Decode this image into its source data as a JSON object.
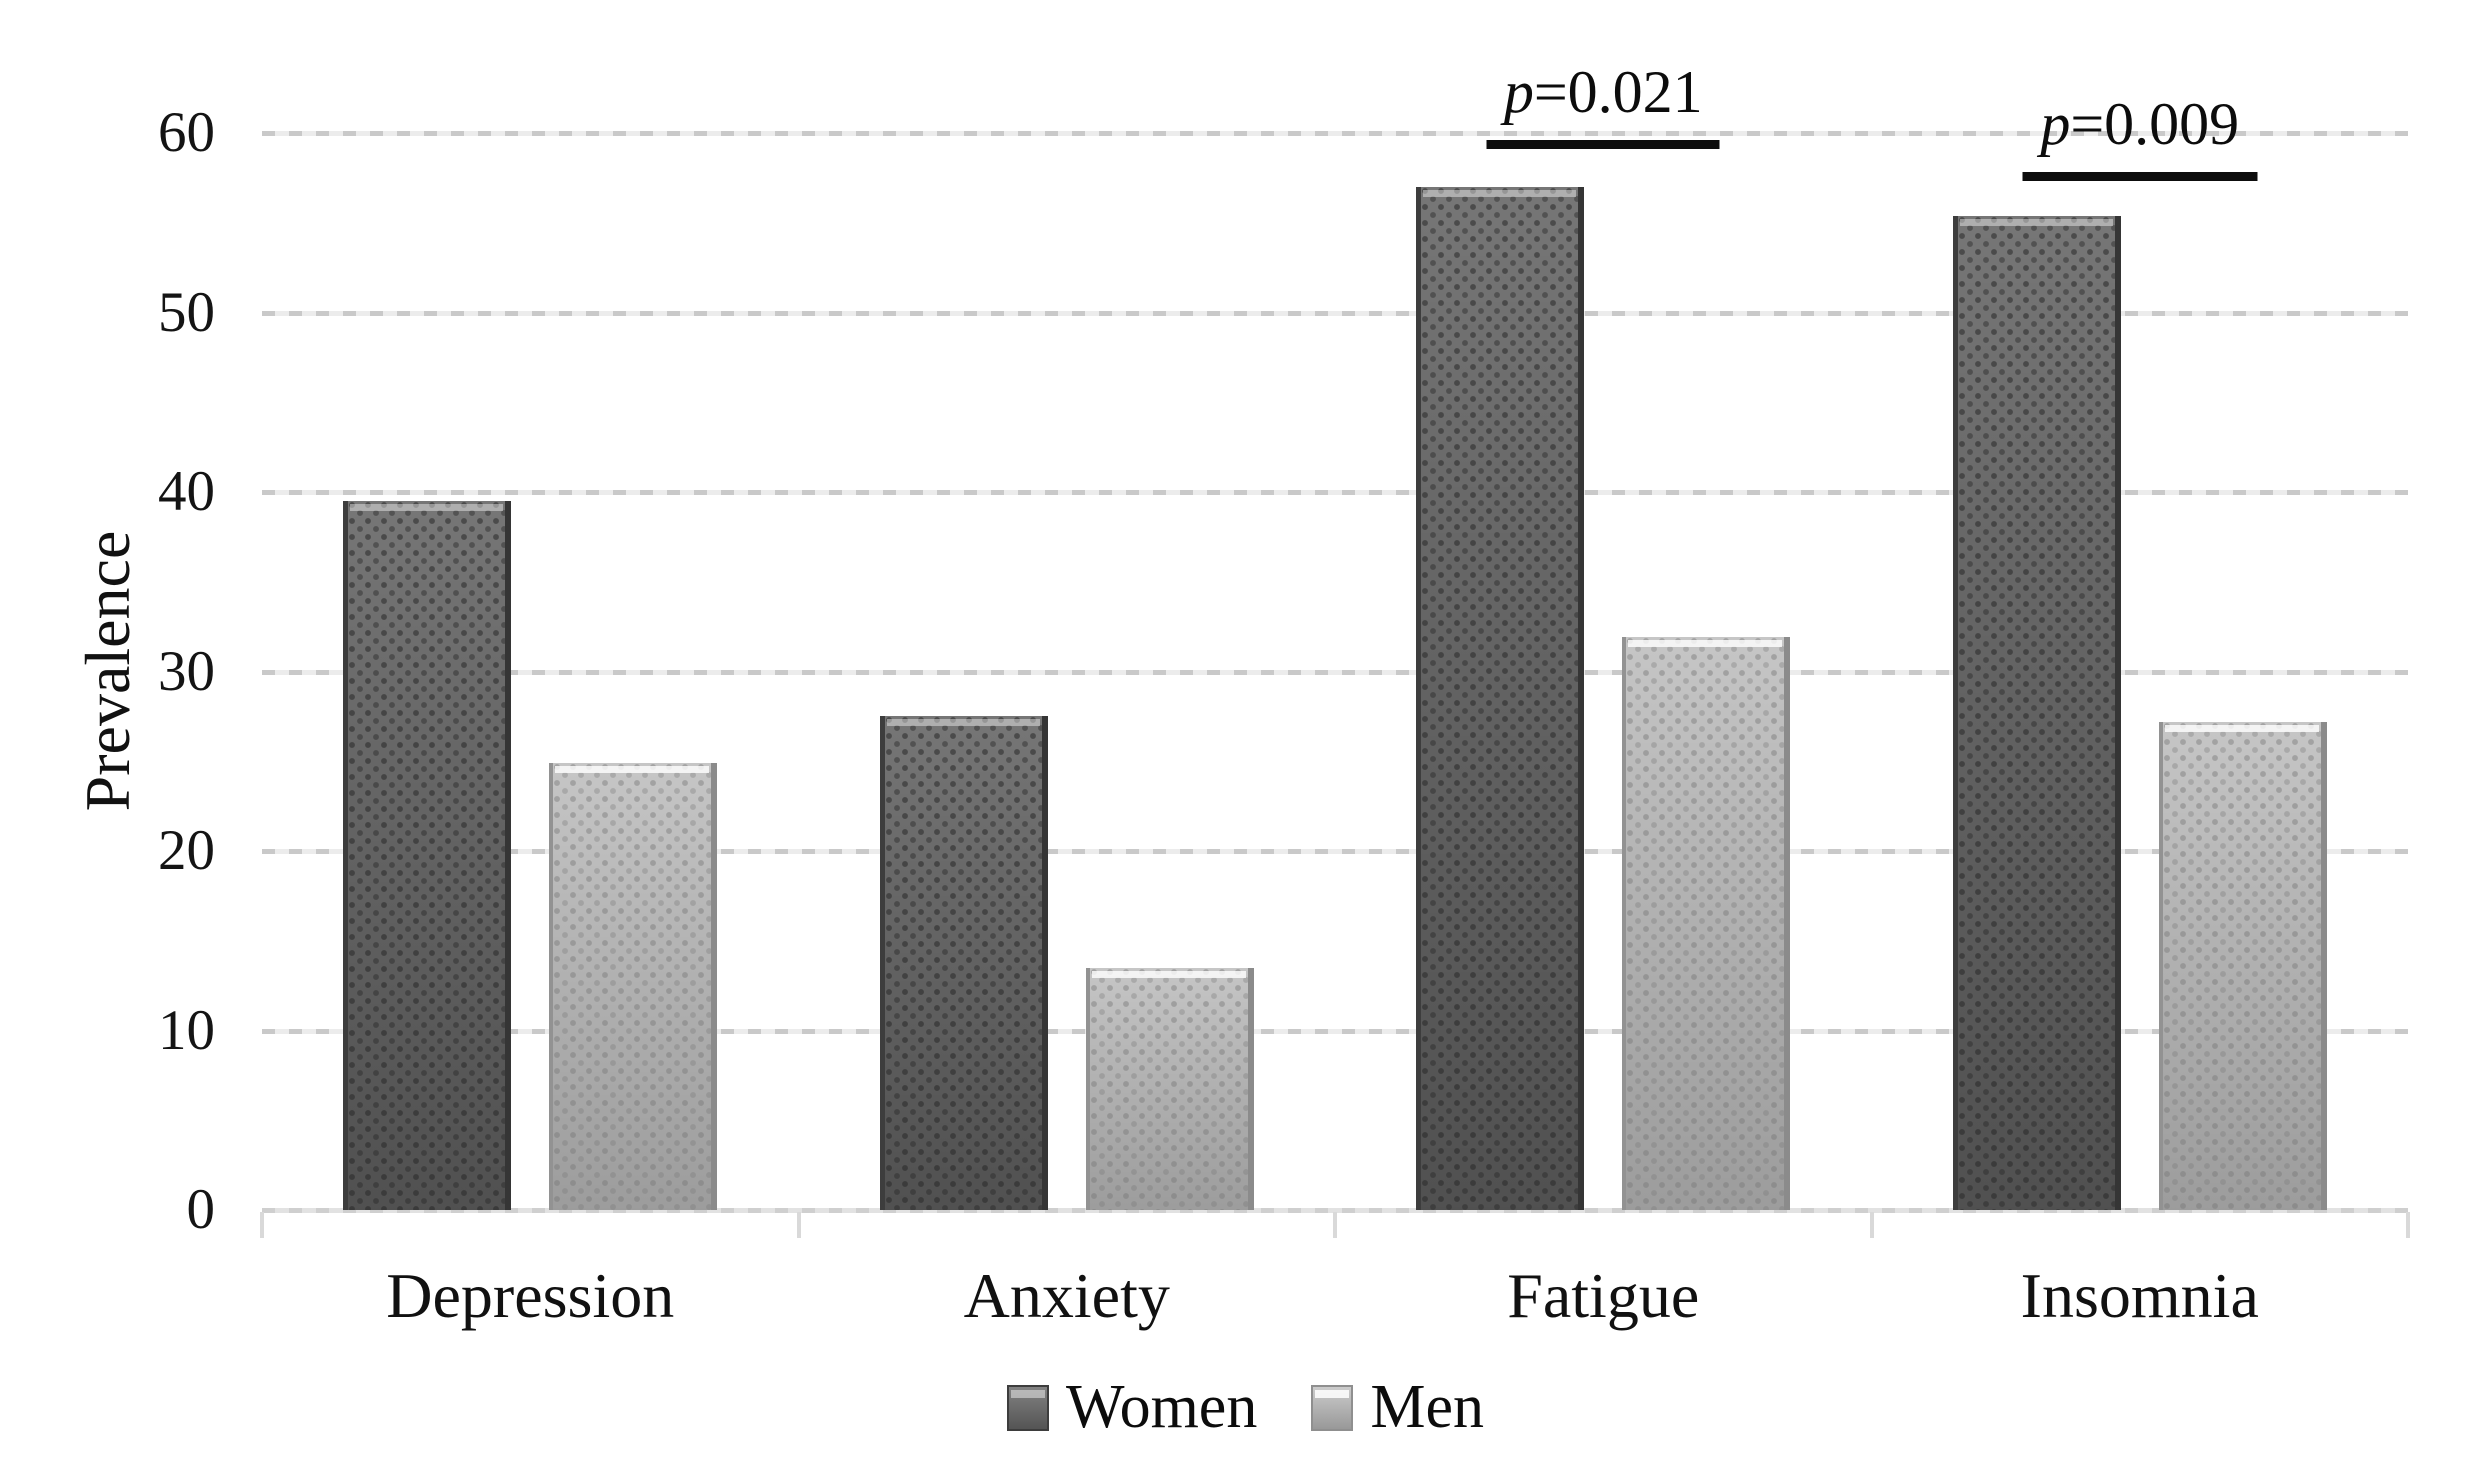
{
  "chart_data": {
    "type": "bar",
    "title": "",
    "xlabel": "",
    "ylabel": "Prevalence",
    "categories": [
      "Depression",
      "Anxiety",
      "Fatigue",
      "Insomnia"
    ],
    "series": [
      {
        "name": "Women",
        "values": [
          39.5,
          27.5,
          57.0,
          55.4
        ]
      },
      {
        "name": "Men",
        "values": [
          24.9,
          13.5,
          31.9,
          27.2
        ]
      }
    ],
    "ylim": [
      0,
      60
    ],
    "yticks": [
      0,
      10,
      20,
      30,
      40,
      50,
      60
    ],
    "grid": "horizontal-dashed",
    "legend_position": "bottom-center",
    "annotations": [
      {
        "category": "Fatigue",
        "label_p": "p",
        "label_rest": "=0.021"
      },
      {
        "category": "Insomnia",
        "label_p": "p",
        "label_rest": "=0.009"
      }
    ],
    "colors": {
      "women_bar": "#676767",
      "men_bar": "#b6b6b6",
      "gridline": "#d9d9d9",
      "annotation_line": "#0d0d0d",
      "text": "#111111"
    }
  }
}
